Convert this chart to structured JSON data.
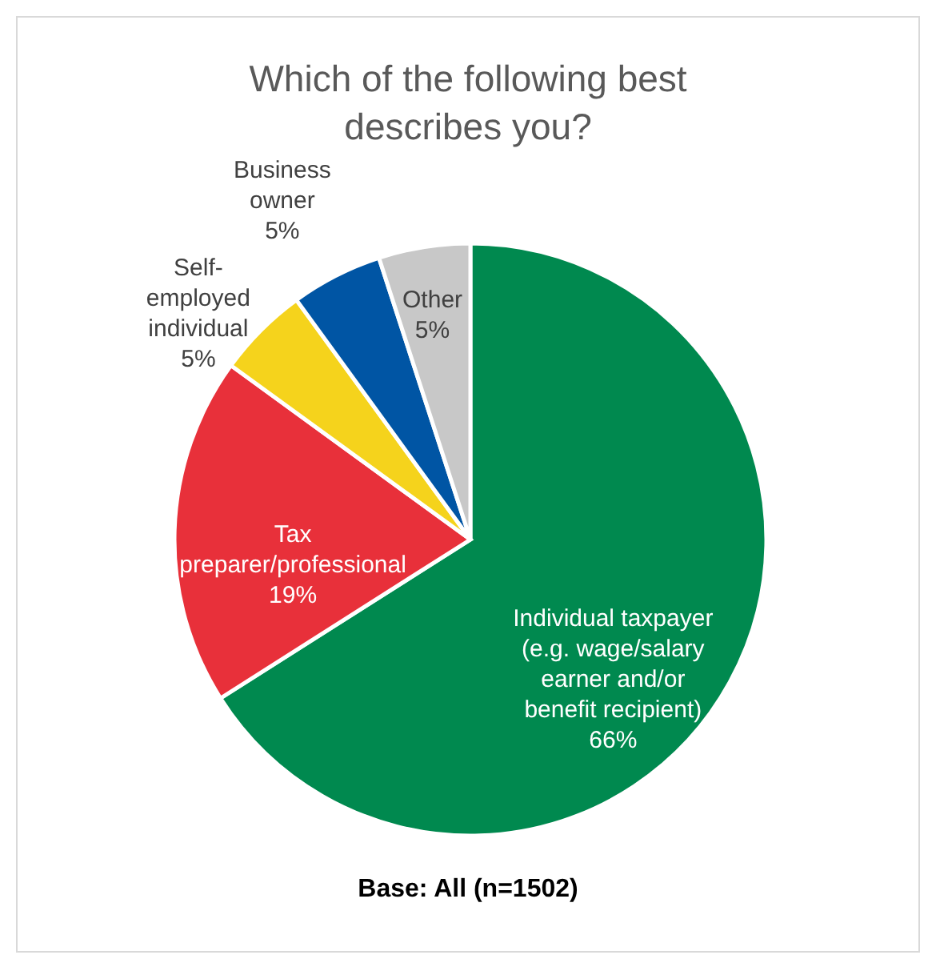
{
  "chart_data": {
    "type": "pie",
    "title": "Which of the following best describes you?",
    "categories": [
      "Individual taxpayer (e.g. wage/salary earner and/or benefit recipient)",
      "Tax preparer/professional",
      "Self-employed individual",
      "Business owner",
      "Other"
    ],
    "values": [
      66,
      19,
      5,
      5,
      5
    ],
    "value_labels": [
      "66%",
      "19%",
      "5%",
      "5%",
      "5%"
    ],
    "colors": [
      "#00894f",
      "#e8303a",
      "#f5d31c",
      "#0055a4",
      "#c8c8c8"
    ],
    "annotations": [
      "Base: All (n=1502)"
    ],
    "legend": false
  }
}
